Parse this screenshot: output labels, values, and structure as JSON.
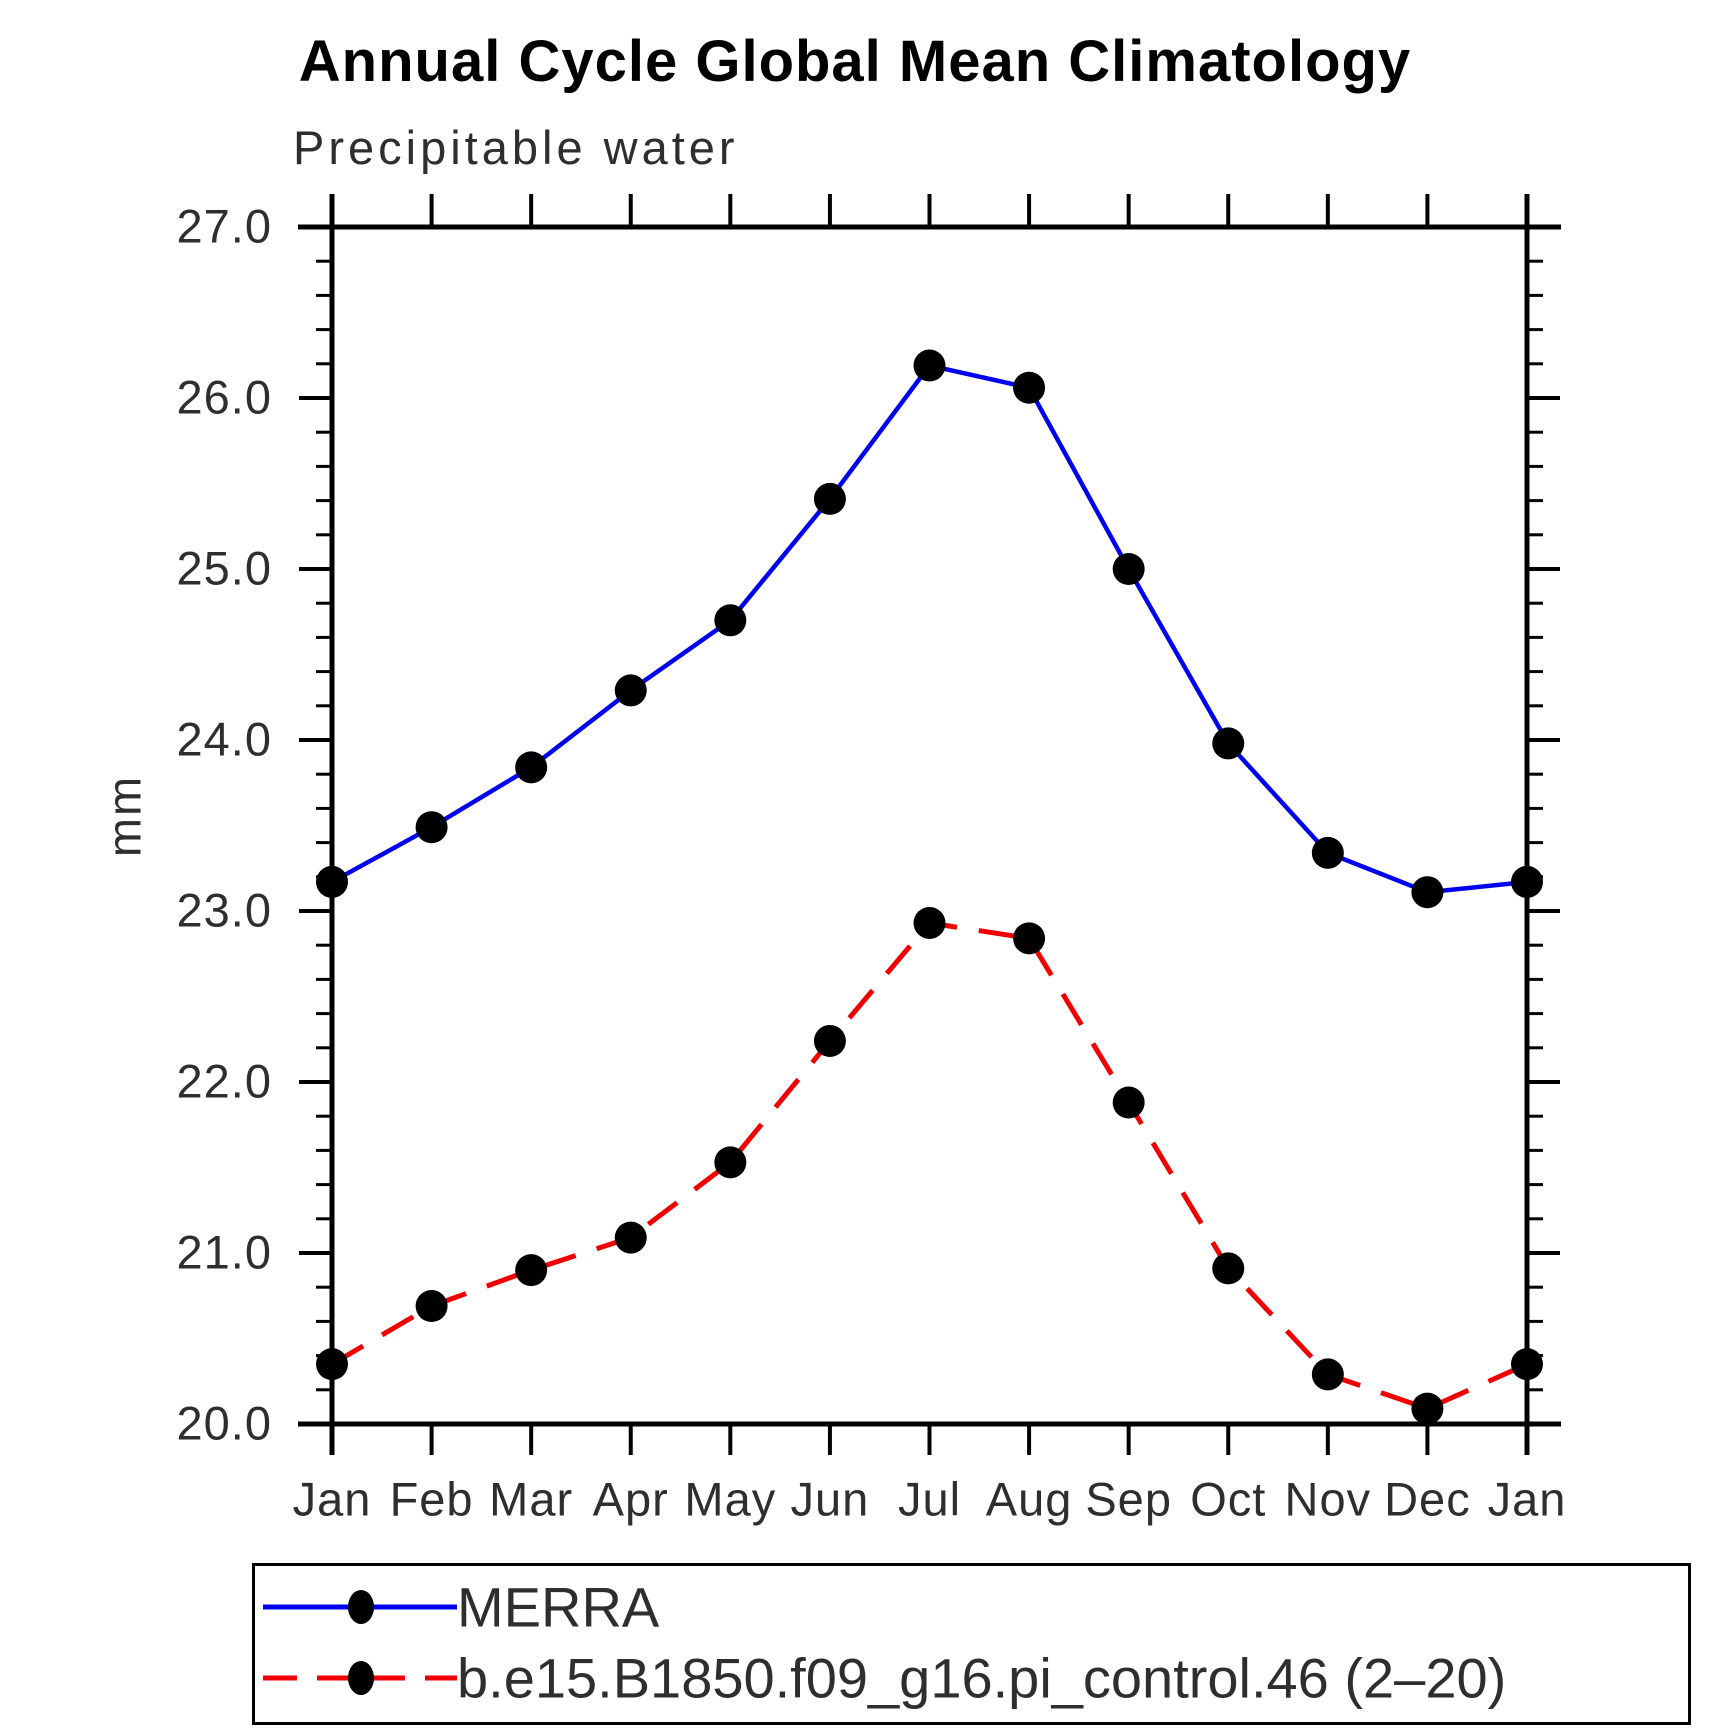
{
  "chart_data": {
    "type": "line",
    "title": "Annual Cycle Global Mean Climatology",
    "subtitle": "Precipitable water",
    "ylabel": "mm",
    "ylim": [
      20.0,
      27.0
    ],
    "y_major_step": 1.0,
    "y_minor_step": 0.2,
    "y_tick_labels": [
      "20.0",
      "21.0",
      "22.0",
      "23.0",
      "24.0",
      "25.0",
      "26.0",
      "27.0"
    ],
    "categories": [
      "Jan",
      "Feb",
      "Mar",
      "Apr",
      "May",
      "Jun",
      "Jul",
      "Aug",
      "Sep",
      "Oct",
      "Nov",
      "Dec",
      "Jan"
    ],
    "grid": false,
    "legend_position": "bottom",
    "marker_color": "#000000",
    "series": [
      {
        "name": "MERRA",
        "color": "#0000f0",
        "style": "solid",
        "marker": "filled-circle",
        "values": [
          23.17,
          23.49,
          23.84,
          24.29,
          24.7,
          25.41,
          26.19,
          26.06,
          25.0,
          23.98,
          23.34,
          23.11,
          23.17
        ]
      },
      {
        "name": "b.e15.B1850.f09_g16.pi_control.46 (2–20)",
        "color": "#f00000",
        "style": "dashed",
        "marker": "filled-circle",
        "values": [
          20.35,
          20.69,
          20.9,
          21.09,
          21.53,
          22.24,
          22.93,
          22.84,
          21.88,
          20.91,
          20.29,
          20.09,
          20.35
        ]
      }
    ]
  }
}
